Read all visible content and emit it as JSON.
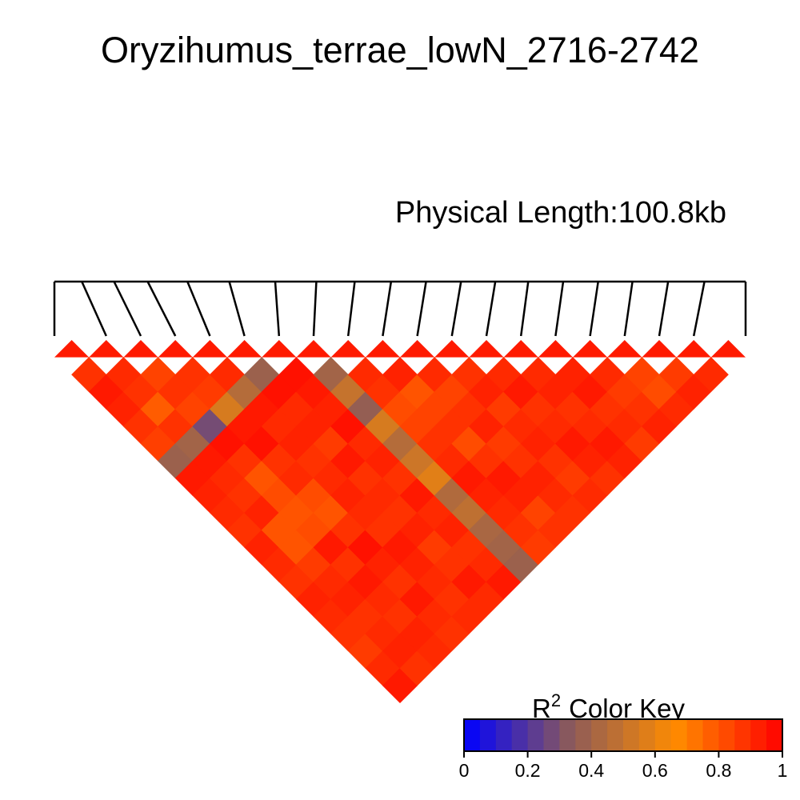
{
  "chart_data": {
    "type": "heatmap",
    "title": "Oryzihumus_terrae_lowN_2716-2742",
    "physical_length_label": "Physical Length:100.8kb",
    "n_snps": 20,
    "snp_positions_kb": [
      0,
      4.0,
      8.7,
      13.6,
      19.4,
      25.5,
      32.2,
      38.2,
      43.8,
      49.1,
      54.2,
      59.3,
      64.3,
      69.1,
      74.2,
      79.3,
      84.3,
      89.5,
      94.8,
      100.8
    ],
    "value_label": "R^2",
    "r2_matrix": [
      [
        null,
        0.88,
        0.94,
        0.92,
        0.88,
        0.85,
        0.38,
        0.94,
        0.92,
        0.9,
        0.88,
        0.92,
        0.9,
        0.88,
        0.92,
        0.9,
        0.88,
        0.86,
        0.9,
        0.94
      ],
      [
        0.88,
        null,
        0.9,
        0.88,
        0.78,
        0.88,
        0.4,
        0.94,
        0.9,
        0.88,
        0.92,
        0.8,
        0.8,
        0.86,
        0.9,
        0.92,
        0.88,
        0.9,
        0.92,
        0.88
      ],
      [
        0.94,
        0.9,
        null,
        0.84,
        0.88,
        0.84,
        0.28,
        0.96,
        0.88,
        0.8,
        0.82,
        0.8,
        0.82,
        0.94,
        0.88,
        0.94,
        0.9,
        0.88,
        0.92,
        0.9
      ],
      [
        0.92,
        0.88,
        0.84,
        null,
        0.88,
        0.86,
        0.55,
        0.94,
        0.96,
        0.88,
        0.9,
        0.82,
        0.8,
        0.88,
        0.96,
        0.92,
        0.88,
        0.94,
        0.9,
        0.88
      ],
      [
        0.88,
        0.78,
        0.88,
        0.88,
        null,
        0.9,
        0.45,
        0.94,
        0.9,
        0.92,
        0.88,
        0.9,
        0.92,
        0.9,
        0.88,
        0.94,
        0.92,
        0.9,
        0.88,
        0.9
      ],
      [
        0.85,
        0.88,
        0.84,
        0.86,
        0.9,
        null,
        0.38,
        0.96,
        0.9,
        0.92,
        0.86,
        0.94,
        0.88,
        0.9,
        0.88,
        0.92,
        0.86,
        0.88,
        0.94,
        0.9
      ],
      [
        0.38,
        0.4,
        0.28,
        0.55,
        0.45,
        0.38,
        null,
        0.96,
        0.94,
        0.92,
        0.96,
        0.9,
        0.92,
        0.88,
        0.94,
        0.9,
        0.92,
        0.88,
        0.9,
        0.94
      ],
      [
        0.94,
        0.94,
        0.96,
        0.94,
        0.94,
        0.96,
        0.96,
        null,
        0.4,
        0.5,
        0.36,
        0.55,
        0.45,
        0.52,
        0.58,
        0.44,
        0.48,
        0.42,
        0.4,
        0.38
      ],
      [
        0.92,
        0.9,
        0.88,
        0.96,
        0.9,
        0.9,
        0.94,
        0.4,
        null,
        0.9,
        0.88,
        0.82,
        0.84,
        0.88,
        0.9,
        0.94,
        0.92,
        0.9,
        0.88,
        0.86
      ],
      [
        0.9,
        0.88,
        0.8,
        0.88,
        0.92,
        0.92,
        0.92,
        0.5,
        0.9,
        null,
        0.92,
        0.8,
        0.84,
        0.88,
        0.82,
        0.88,
        0.94,
        0.92,
        0.84,
        0.88
      ],
      [
        0.88,
        0.92,
        0.82,
        0.9,
        0.88,
        0.86,
        0.96,
        0.36,
        0.88,
        0.92,
        null,
        0.9,
        0.84,
        0.88,
        0.92,
        0.86,
        0.88,
        0.92,
        0.9,
        0.88
      ],
      [
        0.92,
        0.8,
        0.8,
        0.82,
        0.9,
        0.94,
        0.9,
        0.55,
        0.82,
        0.8,
        0.9,
        null,
        0.88,
        0.92,
        0.86,
        0.9,
        0.92,
        0.88,
        0.86,
        0.9
      ],
      [
        0.9,
        0.8,
        0.82,
        0.8,
        0.92,
        0.88,
        0.92,
        0.45,
        0.84,
        0.84,
        0.84,
        0.88,
        null,
        0.9,
        0.94,
        0.88,
        0.9,
        0.94,
        0.92,
        0.88
      ],
      [
        0.88,
        0.86,
        0.94,
        0.88,
        0.9,
        0.9,
        0.88,
        0.52,
        0.88,
        0.88,
        0.88,
        0.92,
        0.9,
        null,
        0.9,
        0.92,
        0.88,
        0.9,
        0.94,
        0.92
      ],
      [
        0.92,
        0.9,
        0.88,
        0.96,
        0.88,
        0.88,
        0.94,
        0.58,
        0.9,
        0.82,
        0.92,
        0.86,
        0.94,
        0.9,
        null,
        0.92,
        0.94,
        0.88,
        0.9,
        0.86
      ],
      [
        0.9,
        0.92,
        0.94,
        0.92,
        0.94,
        0.92,
        0.9,
        0.44,
        0.94,
        0.88,
        0.86,
        0.9,
        0.88,
        0.92,
        0.92,
        null,
        0.9,
        0.86,
        0.88,
        0.92
      ],
      [
        0.88,
        0.88,
        0.9,
        0.88,
        0.92,
        0.86,
        0.92,
        0.48,
        0.92,
        0.94,
        0.88,
        0.92,
        0.9,
        0.88,
        0.94,
        0.9,
        null,
        0.84,
        0.82,
        0.9
      ],
      [
        0.86,
        0.9,
        0.88,
        0.94,
        0.9,
        0.88,
        0.88,
        0.42,
        0.9,
        0.92,
        0.92,
        0.88,
        0.94,
        0.9,
        0.88,
        0.86,
        0.84,
        null,
        0.86,
        0.92
      ],
      [
        0.9,
        0.92,
        0.92,
        0.9,
        0.88,
        0.94,
        0.9,
        0.4,
        0.88,
        0.84,
        0.9,
        0.86,
        0.92,
        0.94,
        0.9,
        0.88,
        0.82,
        0.86,
        null,
        0.9
      ],
      [
        0.94,
        0.88,
        0.9,
        0.88,
        0.9,
        0.9,
        0.94,
        0.38,
        0.86,
        0.88,
        0.88,
        0.9,
        0.88,
        0.92,
        0.86,
        0.92,
        0.9,
        0.92,
        0.9,
        null
      ]
    ],
    "color_key": {
      "title": "Color Key",
      "title_prefix": "R",
      "title_superscript": "2",
      "min": 0,
      "max": 1,
      "tick_labels": [
        "0",
        "0.2",
        "0.4",
        "0.6",
        "0.8",
        "1"
      ],
      "tick_values": [
        0,
        0.2,
        0.4,
        0.6,
        0.8,
        1
      ],
      "n_bins": 20,
      "color_stops": [
        "#0000ff",
        "#8b5a5a",
        "#ff8c00",
        "#ff0000"
      ]
    }
  }
}
